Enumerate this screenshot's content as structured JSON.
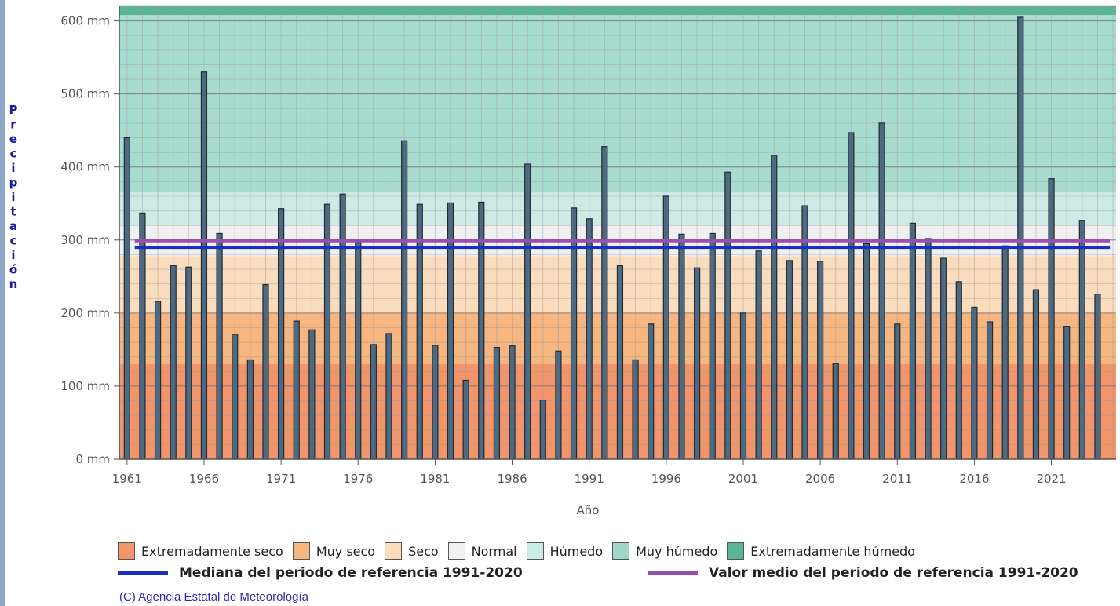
{
  "chart_data": {
    "type": "bar",
    "xlabel": "Año",
    "ylabel": "Precipitación",
    "ylim": [
      0,
      620
    ],
    "xlim": [
      1960.5,
      2025.2
    ],
    "y_ticks": [
      "0 mm",
      "100 mm",
      "200 mm",
      "300 mm",
      "400 mm",
      "500 mm",
      "600 mm"
    ],
    "y_tick_values": [
      0,
      100,
      200,
      300,
      400,
      500,
      600
    ],
    "x_ticks": [
      "1961",
      "1966",
      "1971",
      "1976",
      "1981",
      "1986",
      "1991",
      "1996",
      "2001",
      "2006",
      "2011",
      "2016",
      "2021"
    ],
    "x_tick_values": [
      1961,
      1966,
      1971,
      1976,
      1981,
      1986,
      1991,
      1996,
      2001,
      2006,
      2011,
      2016,
      2021
    ],
    "grid": true,
    "years": [
      1961,
      1962,
      1963,
      1964,
      1965,
      1966,
      1967,
      1968,
      1969,
      1970,
      1971,
      1972,
      1973,
      1974,
      1975,
      1976,
      1977,
      1978,
      1979,
      1980,
      1981,
      1982,
      1983,
      1984,
      1985,
      1986,
      1987,
      1988,
      1989,
      1990,
      1991,
      1992,
      1993,
      1994,
      1995,
      1996,
      1997,
      1998,
      1999,
      2000,
      2001,
      2002,
      2003,
      2004,
      2005,
      2006,
      2007,
      2008,
      2009,
      2010,
      2011,
      2012,
      2013,
      2014,
      2015,
      2016,
      2017,
      2018,
      2019,
      2020,
      2021,
      2022,
      2023,
      2024,
      2025
    ],
    "values": [
      440,
      337,
      216,
      265,
      263,
      530,
      309,
      171,
      136,
      239,
      343,
      189,
      177,
      349,
      363,
      297,
      157,
      172,
      436,
      349,
      156,
      351,
      108,
      352,
      153,
      155,
      404,
      81,
      148,
      344,
      329,
      428,
      265,
      136,
      185,
      360,
      308,
      262,
      309,
      393,
      200,
      285,
      416,
      272,
      347,
      271,
      131,
      447,
      295,
      460,
      185,
      323,
      302,
      275,
      243,
      208,
      188,
      292,
      605,
      232,
      384,
      182,
      327,
      226,
      0
    ],
    "bar_color": "#4e6a80",
    "median": 290,
    "mean": 299,
    "median_color": "#1a2fc0",
    "mean_color": "#9a4fb0",
    "bands": [
      {
        "name": "Extremadamente seco",
        "from": 0,
        "to": 130,
        "color": "#f2956a"
      },
      {
        "name": "Muy seco",
        "from": 130,
        "to": 200,
        "color": "#f7b57f"
      },
      {
        "name": "Seco",
        "from": 200,
        "to": 278,
        "color": "#fbdcbd"
      },
      {
        "name": "Normal",
        "from": 278,
        "to": 320,
        "color": "#f0f0f0"
      },
      {
        "name": "Húmedo",
        "from": 320,
        "to": 365,
        "color": "#cdebe5"
      },
      {
        "name": "Muy húmedo",
        "from": 365,
        "to": 608,
        "color": "#a8dccf"
      },
      {
        "name": "Extremadamente húmedo",
        "from": 608,
        "to": 620,
        "color": "#5ab596"
      }
    ]
  },
  "legend": {
    "categories": [
      {
        "label": "Extremadamente seco",
        "color": "#f2956a"
      },
      {
        "label": "Muy seco",
        "color": "#f7b57f"
      },
      {
        "label": "Seco",
        "color": "#fbdcbd"
      },
      {
        "label": "Normal",
        "color": "#f0f0f0"
      },
      {
        "label": "Húmedo",
        "color": "#cdebe5"
      },
      {
        "label": "Muy húmedo",
        "color": "#9fd7c8"
      },
      {
        "label": "Extremadamente húmedo",
        "color": "#5ab596"
      }
    ],
    "median_label": "Mediana del periodo de referencia 1991-2020",
    "mean_label": "Valor medio del periodo de referencia 1991-2020"
  },
  "copyright": "(C) Agencia Estatal de Meteorología"
}
